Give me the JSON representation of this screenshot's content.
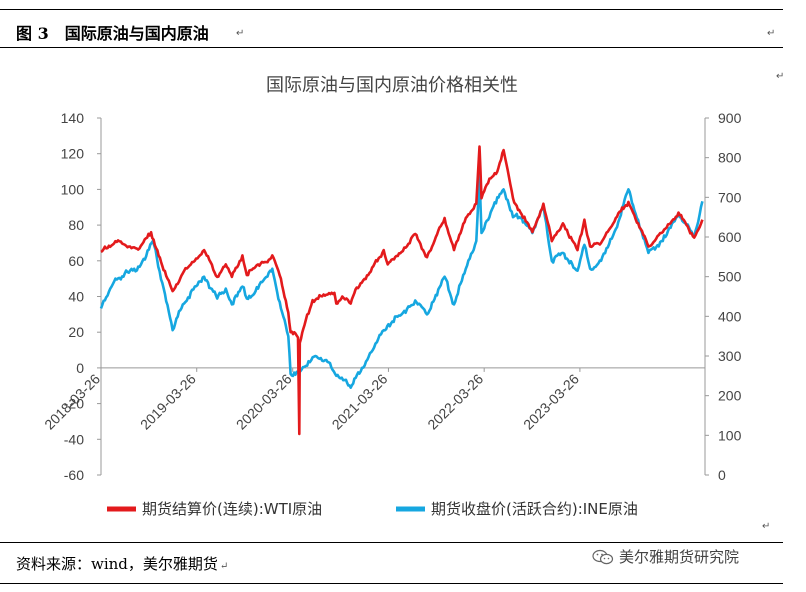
{
  "caption": {
    "number": "图 3",
    "title": "国际原油与国内原油"
  },
  "source_text": "资料来源：wind，美尔雅期货",
  "watermark": {
    "text": "美尔雅期货研究院",
    "icon": "wechat-icon"
  },
  "colors": {
    "wti": "#e31a1c",
    "ine": "#16a7e0"
  },
  "chart_data": {
    "type": "line",
    "title": "国际原油与国内原油价格相关性",
    "x_range": [
      "2018-03-26",
      "2024-07-15"
    ],
    "x_ticks": [
      "2018-03-26",
      "2019-03-26",
      "2020-03-26",
      "2021-03-26",
      "2022-03-26",
      "2023-03-26"
    ],
    "y_left": {
      "min": -60,
      "max": 140,
      "ticks": [
        140,
        120,
        100,
        80,
        60,
        40,
        20,
        0,
        -20,
        -40,
        -60
      ]
    },
    "y_right": {
      "min": 0,
      "max": 900,
      "ticks": [
        900,
        800,
        700,
        600,
        500,
        400,
        300,
        200,
        100,
        0
      ]
    },
    "grid": false,
    "legend_position": "bottom",
    "series": [
      {
        "name": "期货结算价(连续):WTI原油",
        "axis": "left",
        "color": "#e31a1c",
        "points": [
          [
            "2018-03-26",
            65
          ],
          [
            "2018-05-20",
            71
          ],
          [
            "2018-07-10",
            68
          ],
          [
            "2018-08-20",
            67
          ],
          [
            "2018-10-03",
            76
          ],
          [
            "2018-11-15",
            57
          ],
          [
            "2018-12-24",
            43
          ],
          [
            "2019-02-01",
            53
          ],
          [
            "2019-04-23",
            66
          ],
          [
            "2019-06-12",
            51
          ],
          [
            "2019-07-15",
            58
          ],
          [
            "2019-08-07",
            51
          ],
          [
            "2019-09-16",
            63
          ],
          [
            "2019-10-03",
            52
          ],
          [
            "2019-11-15",
            58
          ],
          [
            "2019-12-31",
            61
          ],
          [
            "2020-01-08",
            63
          ],
          [
            "2020-02-10",
            50
          ],
          [
            "2020-03-09",
            31
          ],
          [
            "2020-03-18",
            20
          ],
          [
            "2020-04-01",
            20
          ],
          [
            "2020-04-15",
            17
          ],
          [
            "2020-04-20",
            -37
          ],
          [
            "2020-04-22",
            14
          ],
          [
            "2020-05-10",
            24
          ],
          [
            "2020-06-10",
            38
          ],
          [
            "2020-08-01",
            41
          ],
          [
            "2020-09-01",
            42
          ],
          [
            "2020-09-08",
            36
          ],
          [
            "2020-10-01",
            40
          ],
          [
            "2020-11-02",
            36
          ],
          [
            "2020-11-25",
            45
          ],
          [
            "2021-01-08",
            52
          ],
          [
            "2021-03-08",
            66
          ],
          [
            "2021-03-23",
            58
          ],
          [
            "2021-05-15",
            65
          ],
          [
            "2021-07-06",
            75
          ],
          [
            "2021-08-20",
            62
          ],
          [
            "2021-10-26",
            84
          ],
          [
            "2021-12-01",
            66
          ],
          [
            "2022-01-15",
            84
          ],
          [
            "2022-02-24",
            92
          ],
          [
            "2022-03-08",
            124
          ],
          [
            "2022-03-16",
            95
          ],
          [
            "2022-04-15",
            106
          ],
          [
            "2022-05-15",
            110
          ],
          [
            "2022-06-08",
            122
          ],
          [
            "2022-07-14",
            95
          ],
          [
            "2022-08-16",
            86
          ],
          [
            "2022-09-26",
            76
          ],
          [
            "2022-11-07",
            92
          ],
          [
            "2022-12-09",
            71
          ],
          [
            "2023-01-20",
            81
          ],
          [
            "2023-03-17",
            66
          ],
          [
            "2023-04-12",
            83
          ],
          [
            "2023-05-04",
            68
          ],
          [
            "2023-06-15",
            70
          ],
          [
            "2023-08-10",
            84
          ],
          [
            "2023-09-27",
            93
          ],
          [
            "2023-10-15",
            87
          ],
          [
            "2023-12-12",
            68
          ],
          [
            "2024-02-15",
            78
          ],
          [
            "2024-04-05",
            87
          ],
          [
            "2024-06-04",
            73
          ],
          [
            "2024-07-05",
            83
          ]
        ]
      },
      {
        "name": "期货收盘价(活跃合约):INE原油",
        "axis": "right",
        "color": "#16a7e0",
        "points": [
          [
            "2018-03-26",
            420
          ],
          [
            "2018-05-20",
            495
          ],
          [
            "2018-07-10",
            510
          ],
          [
            "2018-08-20",
            525
          ],
          [
            "2018-10-10",
            590
          ],
          [
            "2018-11-20",
            470
          ],
          [
            "2018-12-24",
            365
          ],
          [
            "2019-02-01",
            430
          ],
          [
            "2019-04-23",
            500
          ],
          [
            "2019-06-12",
            445
          ],
          [
            "2019-07-15",
            470
          ],
          [
            "2019-08-07",
            430
          ],
          [
            "2019-09-16",
            475
          ],
          [
            "2019-10-03",
            445
          ],
          [
            "2019-11-15",
            470
          ],
          [
            "2019-12-31",
            515
          ],
          [
            "2020-01-08",
            520
          ],
          [
            "2020-02-10",
            420
          ],
          [
            "2020-03-09",
            350
          ],
          [
            "2020-03-18",
            255
          ],
          [
            "2020-04-10",
            260
          ],
          [
            "2020-04-28",
            265
          ],
          [
            "2020-05-15",
            275
          ],
          [
            "2020-06-20",
            300
          ],
          [
            "2020-08-01",
            290
          ],
          [
            "2020-09-08",
            250
          ],
          [
            "2020-10-15",
            240
          ],
          [
            "2020-11-02",
            220
          ],
          [
            "2020-12-15",
            270
          ],
          [
            "2021-01-20",
            310
          ],
          [
            "2021-03-08",
            365
          ],
          [
            "2021-03-26",
            380
          ],
          [
            "2021-05-15",
            405
          ],
          [
            "2021-07-06",
            440
          ],
          [
            "2021-08-20",
            405
          ],
          [
            "2021-10-26",
            500
          ],
          [
            "2021-12-01",
            430
          ],
          [
            "2022-01-15",
            520
          ],
          [
            "2022-02-24",
            590
          ],
          [
            "2022-03-08",
            760
          ],
          [
            "2022-03-16",
            610
          ],
          [
            "2022-04-15",
            650
          ],
          [
            "2022-05-15",
            700
          ],
          [
            "2022-06-08",
            720
          ],
          [
            "2022-07-14",
            650
          ],
          [
            "2022-08-16",
            650
          ],
          [
            "2022-09-26",
            610
          ],
          [
            "2022-11-07",
            680
          ],
          [
            "2022-12-09",
            540
          ],
          [
            "2023-01-20",
            560
          ],
          [
            "2023-03-17",
            515
          ],
          [
            "2023-04-12",
            580
          ],
          [
            "2023-05-04",
            520
          ],
          [
            "2023-06-15",
            540
          ],
          [
            "2023-08-10",
            620
          ],
          [
            "2023-09-27",
            720
          ],
          [
            "2023-10-15",
            680
          ],
          [
            "2023-12-12",
            560
          ],
          [
            "2024-02-15",
            600
          ],
          [
            "2024-04-05",
            660
          ],
          [
            "2024-06-04",
            600
          ],
          [
            "2024-07-05",
            690
          ]
        ]
      }
    ]
  }
}
